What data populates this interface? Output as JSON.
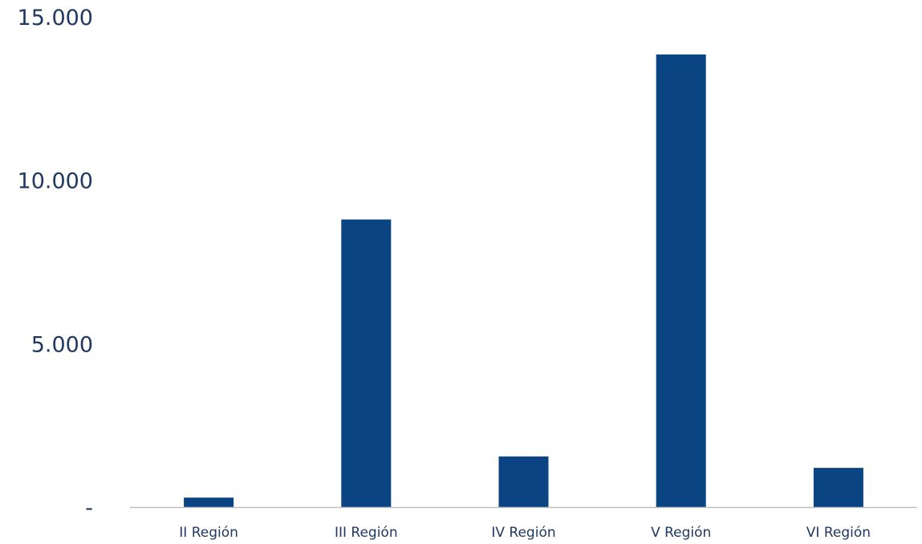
{
  "chart_data": {
    "type": "bar",
    "categories": [
      "II Región",
      "III Región",
      "IV Región",
      "V Región",
      "VI Región"
    ],
    "values": [
      290,
      8800,
      1550,
      13850,
      1200
    ],
    "ylim": [
      0,
      15000
    ],
    "y_ticks": [
      {
        "value": 0,
        "label": "-"
      },
      {
        "value": 5000,
        "label": "5.000"
      },
      {
        "value": 10000,
        "label": "10.000"
      },
      {
        "value": 15000,
        "label": "15.000"
      }
    ],
    "title": "",
    "xlabel": "",
    "ylabel": "",
    "grid": false,
    "legend": "none",
    "colors": {
      "bar": "#0b4482",
      "axis": "#bfbfbf",
      "text": "#1f3864"
    }
  }
}
